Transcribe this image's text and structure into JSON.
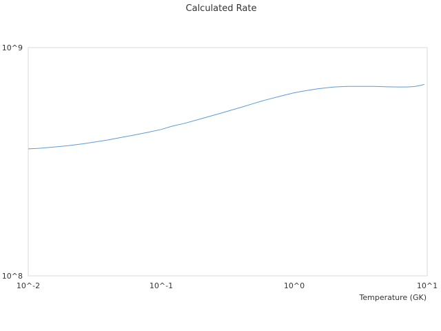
{
  "chart_data": {
    "type": "line",
    "title": "Calculated Rate",
    "xlabel": "Temperature (GK)",
    "ylabel": "",
    "x_scale": "log",
    "y_scale": "log",
    "xlim": [
      0.01,
      10
    ],
    "ylim": [
      100000000,
      1000000000
    ],
    "x_ticks": [
      {
        "value": 0.01,
        "label": "10^-2"
      },
      {
        "value": 0.1,
        "label": "10^-1"
      },
      {
        "value": 1,
        "label": "10^0"
      },
      {
        "value": 10,
        "label": "10^1"
      }
    ],
    "y_ticks": [
      {
        "value": 100000000,
        "label": "10^8"
      },
      {
        "value": 1000000000,
        "label": "10^9"
      }
    ],
    "grid": false,
    "legend": "none",
    "series": [
      {
        "color": "#5b9bd5",
        "points": [
          [
            0.01,
            360000000
          ],
          [
            0.012,
            362000000
          ],
          [
            0.015,
            366000000
          ],
          [
            0.02,
            372000000
          ],
          [
            0.025,
            378000000
          ],
          [
            0.03,
            384000000
          ],
          [
            0.04,
            394000000
          ],
          [
            0.05,
            404000000
          ],
          [
            0.06,
            412000000
          ],
          [
            0.08,
            426000000
          ],
          [
            0.1,
            438000000
          ],
          [
            0.12,
            452000000
          ],
          [
            0.15,
            466000000
          ],
          [
            0.2,
            488000000
          ],
          [
            0.25,
            506000000
          ],
          [
            0.3,
            522000000
          ],
          [
            0.4,
            548000000
          ],
          [
            0.5,
            570000000
          ],
          [
            0.6,
            588000000
          ],
          [
            0.8,
            614000000
          ],
          [
            1.0,
            634000000
          ],
          [
            1.2,
            646000000
          ],
          [
            1.5,
            660000000
          ],
          [
            2.0,
            672000000
          ],
          [
            2.5,
            676000000
          ],
          [
            3.0,
            676000000
          ],
          [
            4.0,
            676000000
          ],
          [
            5.0,
            673000000
          ],
          [
            6.0,
            672000000
          ],
          [
            7.0,
            672000000
          ],
          [
            8.0,
            675000000
          ],
          [
            9.0,
            684000000
          ],
          [
            9.5,
            690000000
          ]
        ]
      }
    ]
  }
}
